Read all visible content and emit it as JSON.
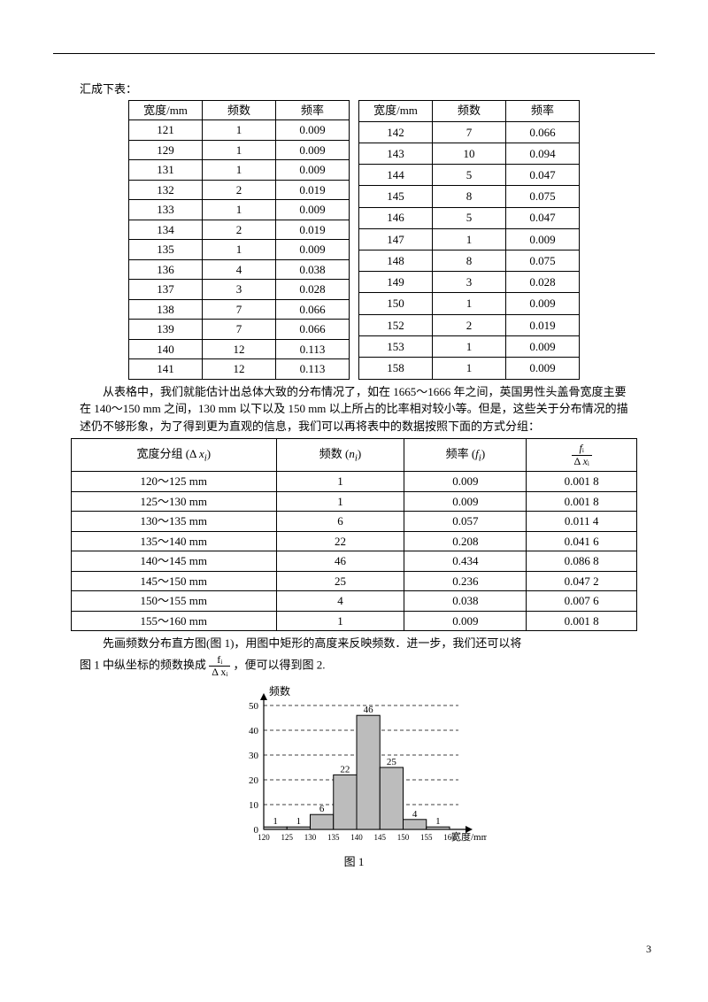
{
  "top_line": "汇成下表：",
  "table1": {
    "headers": [
      "宽度/mm",
      "频数",
      "频率"
    ],
    "left_rows": [
      [
        "121",
        "1",
        "0.009"
      ],
      [
        "129",
        "1",
        "0.009"
      ],
      [
        "131",
        "1",
        "0.009"
      ],
      [
        "132",
        "2",
        "0.019"
      ],
      [
        "133",
        "1",
        "0.009"
      ],
      [
        "134",
        "2",
        "0.019"
      ],
      [
        "135",
        "1",
        "0.009"
      ],
      [
        "136",
        "4",
        "0.038"
      ],
      [
        "137",
        "3",
        "0.028"
      ],
      [
        "138",
        "7",
        "0.066"
      ],
      [
        "139",
        "7",
        "0.066"
      ],
      [
        "140",
        "12",
        "0.113"
      ],
      [
        "141",
        "12",
        "0.113"
      ]
    ],
    "right_rows": [
      [
        "142",
        "7",
        "0.066"
      ],
      [
        "143",
        "10",
        "0.094"
      ],
      [
        "144",
        "5",
        "0.047"
      ],
      [
        "145",
        "8",
        "0.075"
      ],
      [
        "146",
        "5",
        "0.047"
      ],
      [
        "147",
        "1",
        "0.009"
      ],
      [
        "148",
        "8",
        "0.075"
      ],
      [
        "149",
        "3",
        "0.028"
      ],
      [
        "150",
        "1",
        "0.009"
      ],
      [
        "152",
        "2",
        "0.019"
      ],
      [
        "153",
        "1",
        "0.009"
      ],
      [
        "158",
        "1",
        "0.009"
      ]
    ]
  },
  "para1": "从表格中，我们就能估计出总体大致的分布情况了，如在 1665～1666 年之间，英国男性头盖骨宽度主要在 140～150 mm 之间，130 mm 以下以及 150 mm 以上所占的比率相对较小等。但是，这些关于分布情况的描述仍不够形象，为了得到更为直观的信息，我们可以再将表中的数据按照下面的方式分组：",
  "table2": {
    "headers": [
      "宽度分组 (Δ xᵢ)",
      "频数 (nᵢ)",
      "频率 (fᵢ)",
      "fᵢ/Δ xᵢ"
    ],
    "rows": [
      [
        "120～125 mm",
        "1",
        "0.009",
        "0.001 8"
      ],
      [
        "125～130 mm",
        "1",
        "0.009",
        "0.001 8"
      ],
      [
        "130～135 mm",
        "6",
        "0.057",
        "0.011 4"
      ],
      [
        "135～140 mm",
        "22",
        "0.208",
        "0.041 6"
      ],
      [
        "140～145 mm",
        "46",
        "0.434",
        "0.086 8"
      ],
      [
        "145～150 mm",
        "25",
        "0.236",
        "0.047 2"
      ],
      [
        "150～155 mm",
        "4",
        "0.038",
        "0.007 6"
      ],
      [
        "155～160 mm",
        "1",
        "0.009",
        "0.001 8"
      ]
    ]
  },
  "para2a": "先画频数分布直方图(图 1)，用图中矩形的高度来反映频数．进一步，我们还可以将",
  "para2b_prefix": "图 1 中纵坐标的频数换成",
  "para2b_suffix": "，便可以得到图 2.",
  "frac": {
    "num": "fᵢ",
    "den": "Δ xᵢ"
  },
  "histogram": {
    "ylabel": "频数",
    "xlabel": "宽度/mm",
    "caption": "图 1",
    "y_ticks": [
      0,
      10,
      20,
      30,
      40,
      50
    ],
    "x_ticks": [
      "120",
      "125",
      "130",
      "135",
      "140",
      "145",
      "150",
      "155",
      "160"
    ],
    "bars": [
      1,
      1,
      6,
      22,
      46,
      25,
      4,
      1
    ],
    "bar_labels": [
      "1",
      "1",
      "6",
      "22",
      "46",
      "25",
      "4",
      "1"
    ],
    "bar_fill": "#bcbcbc",
    "bar_stroke": "#000000",
    "grid_dash": "4,3",
    "axis_color": "#000000"
  },
  "pagenum": "3"
}
